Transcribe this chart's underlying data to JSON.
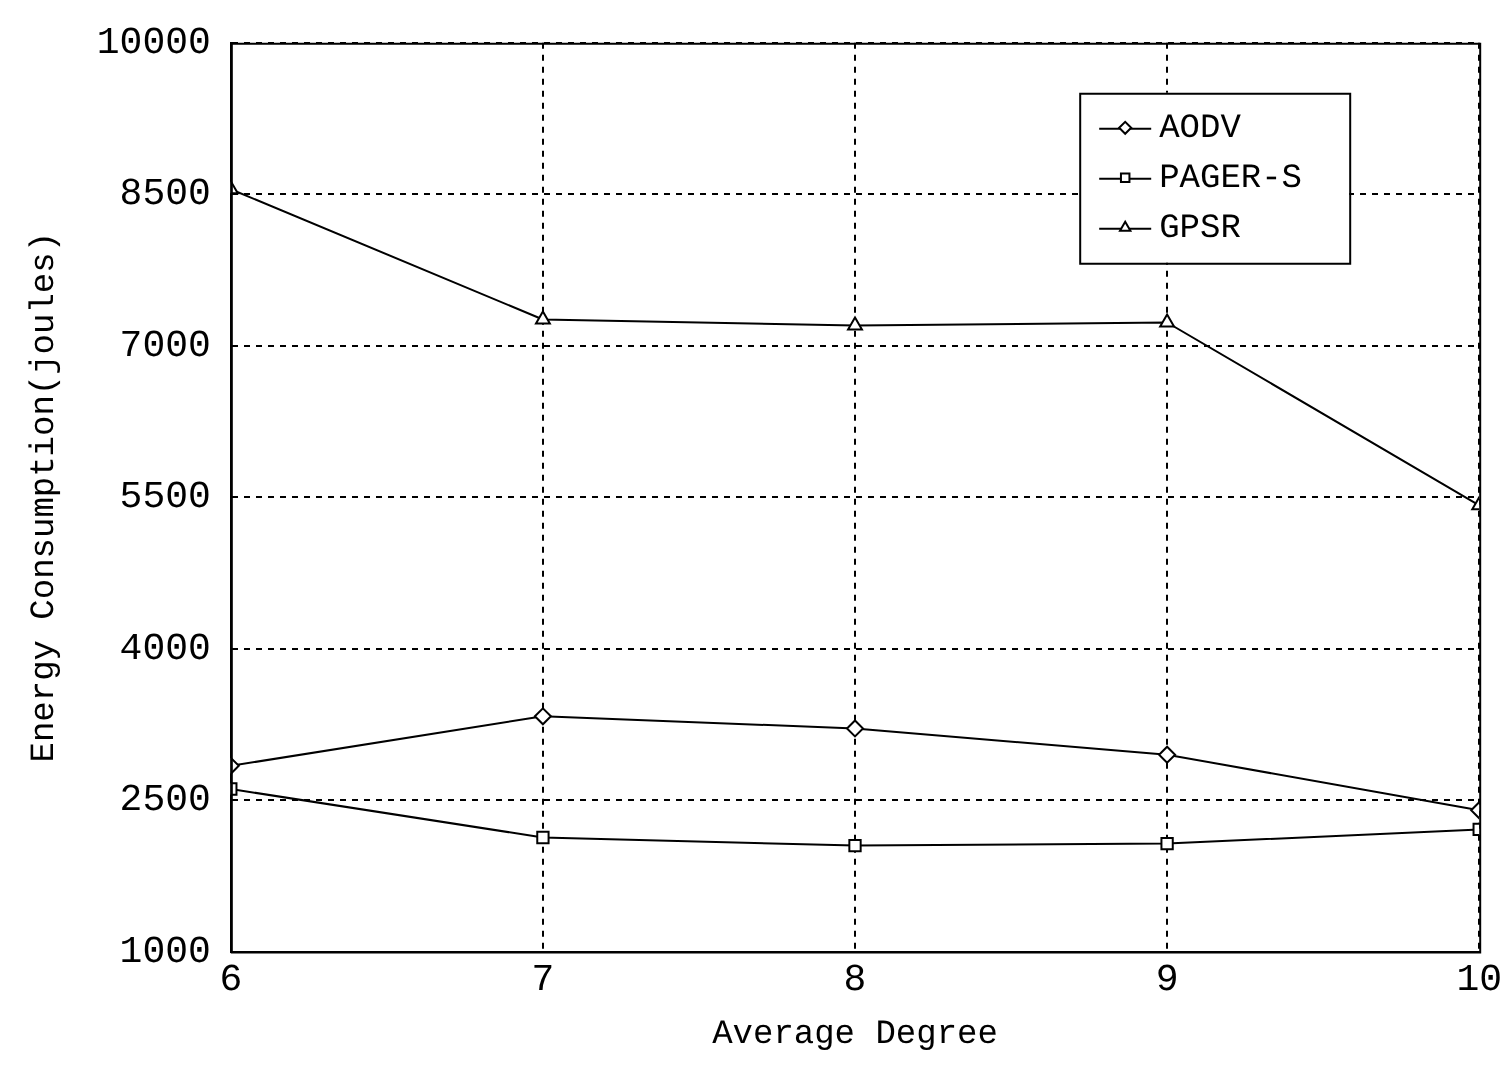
{
  "chart_data": {
    "type": "line",
    "xlabel": "Average Degree",
    "ylabel": "Energy Consumption(joules)",
    "x": [
      6,
      7,
      8,
      9,
      10
    ],
    "xlim": [
      6,
      10
    ],
    "xticks": [
      6,
      7,
      8,
      9,
      10
    ],
    "ylim": [
      1000,
      10000
    ],
    "yticks": [
      1000,
      2500,
      4000,
      5500,
      7000,
      8500,
      10000
    ],
    "grid": true,
    "legend": "top right",
    "line_style": "solid",
    "series": [
      {
        "name": "AODV",
        "color": "#000000",
        "marker": "diamond",
        "values": [
          2840,
          3330,
          3210,
          2950,
          2400
        ]
      },
      {
        "name": "PAGER-S",
        "color": "#000000",
        "marker": "square",
        "values": [
          2610,
          2130,
          2050,
          2070,
          2210
        ]
      },
      {
        "name": "GPSR",
        "color": "#000000",
        "marker": "triangle",
        "values": [
          8550,
          7260,
          7200,
          7230,
          5420
        ]
      }
    ]
  }
}
